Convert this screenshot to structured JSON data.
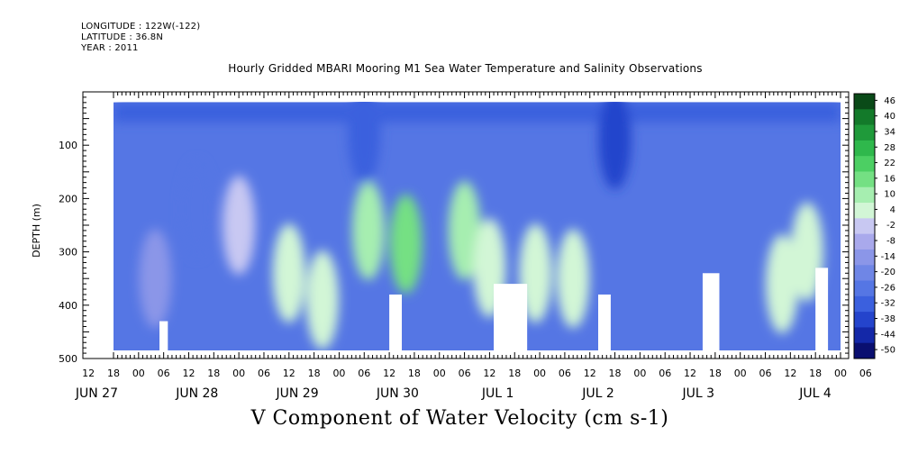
{
  "header": {
    "longitude": "LONGITUDE : 122W(-122)",
    "latitude": "LATITUDE : 36.8N",
    "year": "YEAR : 2011"
  },
  "chart_data": {
    "type": "heatmap",
    "title": "Hourly Gridded MBARI Mooring M1 Sea Water Temperature and Salinity Observations",
    "xlabel": "V Component of Water Velocity (cm s-1)",
    "ylabel": "DEPTH (m)",
    "ylim": [
      500,
      0
    ],
    "y_ticks": [
      100,
      200,
      300,
      400,
      500
    ],
    "y_tick_labels": [
      "100",
      "200",
      "300",
      "400",
      "500"
    ],
    "data_depth_range": [
      20,
      485
    ],
    "x_hour_labels": [
      "12",
      "18",
      "00",
      "06",
      "12",
      "18",
      "00",
      "06",
      "12",
      "18",
      "00",
      "06",
      "12",
      "18",
      "00",
      "06",
      "12",
      "18",
      "00",
      "06",
      "12",
      "18",
      "00",
      "06",
      "12",
      "18",
      "00",
      "06",
      "12",
      "18",
      "00",
      "06"
    ],
    "x_date_labels": [
      "JUN 27",
      "JUN 28",
      "JUN 29",
      "JUN 30",
      "JUL  1",
      "JUL  2",
      "JUL  3",
      "JUL  4"
    ],
    "x_range_hours": [
      0,
      174
    ],
    "colorbar": {
      "levels": [
        "46",
        "40",
        "34",
        "28",
        "22",
        "16",
        "10",
        "4",
        "-2",
        "-8",
        "-14",
        "-20",
        "-26",
        "-32",
        "-38",
        "-44",
        "-50"
      ],
      "range": [
        -50,
        50
      ],
      "colors": [
        "#0a4a18",
        "#137a2a",
        "#1f9a3a",
        "#2fb84c",
        "#4ccf63",
        "#74e083",
        "#a6eeb0",
        "#d2f6d6",
        "#c8c8f2",
        "#a9a9ec",
        "#8b96e8",
        "#6f86e6",
        "#5576e4",
        "#3b60de",
        "#2444cc",
        "#1428a8",
        "#0a0f70"
      ]
    },
    "series": [
      {
        "values": [
          {
            "x": 70,
            "y": 285,
            "v": 18
          },
          {
            "x": 61,
            "y": 260,
            "v": 10
          },
          {
            "x": 84,
            "y": 260,
            "v": 12
          },
          {
            "x": 101,
            "y": 340,
            "v": 8
          },
          {
            "x": 90,
            "y": 330,
            "v": 6
          },
          {
            "x": 110,
            "y": 350,
            "v": 4
          },
          {
            "x": 160,
            "y": 360,
            "v": 8
          },
          {
            "x": 166,
            "y": 300,
            "v": 6
          },
          {
            "x": 50,
            "y": 390,
            "v": 6
          },
          {
            "x": 42,
            "y": 340,
            "v": 4
          },
          {
            "x": 30,
            "y": 250,
            "v": 2
          },
          {
            "x": 10,
            "y": 350,
            "v": -12
          },
          {
            "x": 120,
            "y": 90,
            "v": -34
          },
          {
            "x": 60,
            "y": 80,
            "v": -30
          },
          {
            "x": 20,
            "y": 220,
            "v": -26
          }
        ]
      }
    ],
    "masked_regions": [
      {
        "x": [
          11,
          13
        ],
        "y": [
          430,
          485
        ]
      },
      {
        "x": [
          66,
          69
        ],
        "y": [
          380,
          485
        ]
      },
      {
        "x": [
          91,
          99
        ],
        "y": [
          360,
          485
        ]
      },
      {
        "x": [
          116,
          119
        ],
        "y": [
          380,
          485
        ]
      },
      {
        "x": [
          141,
          145
        ],
        "y": [
          340,
          485
        ]
      },
      {
        "x": [
          168,
          171
        ],
        "y": [
          330,
          485
        ]
      }
    ]
  }
}
